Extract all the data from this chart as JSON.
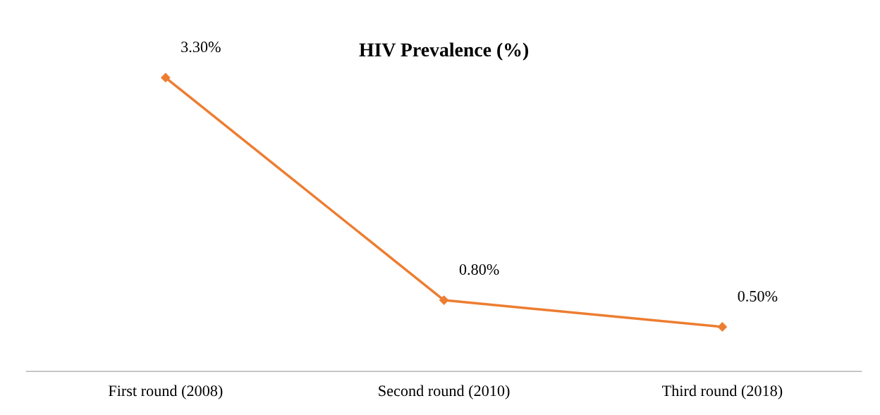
{
  "chart_data": {
    "type": "line",
    "title": "HIV Prevalence (%)",
    "categories": [
      "First round (2008)",
      "Second round (2010)",
      "Third round (2018)"
    ],
    "series": [
      {
        "color": "#ed7d31",
        "values": [
          3.3,
          0.8,
          0.5
        ],
        "value_labels": [
          "3.30%",
          "0.80%",
          "0.50%"
        ]
      }
    ],
    "tick_labels": "x",
    "marker": "diamond",
    "line_style": "solid"
  }
}
